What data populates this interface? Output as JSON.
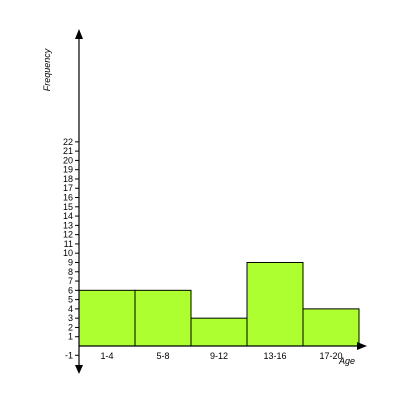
{
  "chart_data": {
    "type": "bar",
    "categories": [
      "1-4",
      "5-8",
      "9-12",
      "13-16",
      "17-20"
    ],
    "values": [
      6,
      6,
      3,
      9,
      4
    ],
    "title": "",
    "xlabel": "Age",
    "ylabel": "Frequency",
    "ylim": [
      -1,
      22
    ],
    "y_ticks": [
      -1,
      1,
      2,
      3,
      4,
      5,
      6,
      7,
      8,
      9,
      10,
      11,
      12,
      13,
      14,
      15,
      16,
      17,
      18,
      19,
      20,
      21,
      22
    ],
    "grid": false,
    "bar_color": "#adff2f"
  }
}
